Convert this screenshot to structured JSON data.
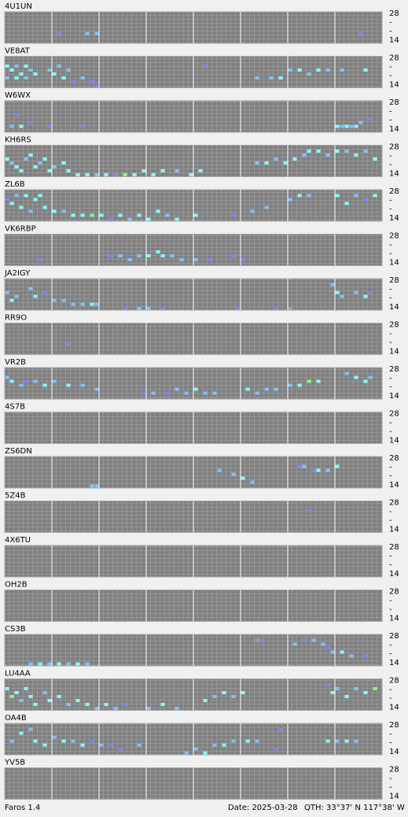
{
  "bands": [
    "28",
    "-",
    "-",
    "14"
  ],
  "palette": [
    "#8080ff",
    "#80c0ff",
    "#80ffff",
    "#80ff80",
    "#a0a0a0"
  ],
  "stations": [
    {
      "name": "4U1UN",
      "cells": [
        [
          11,
          5,
          0
        ],
        [
          17,
          5,
          1
        ],
        [
          19,
          5,
          1
        ],
        [
          75,
          5,
          0
        ]
      ]
    },
    {
      "name": "VE8AT",
      "cells": [
        [
          0,
          2,
          2
        ],
        [
          1,
          3,
          2
        ],
        [
          2,
          2,
          1
        ],
        [
          3,
          4,
          2
        ],
        [
          4,
          2,
          2
        ],
        [
          5,
          3,
          1
        ],
        [
          6,
          4,
          2
        ],
        [
          0,
          5,
          1
        ],
        [
          2,
          5,
          2
        ],
        [
          4,
          5,
          1
        ],
        [
          9,
          3,
          1
        ],
        [
          10,
          4,
          2
        ],
        [
          11,
          2,
          1
        ],
        [
          12,
          5,
          2
        ],
        [
          13,
          3,
          1
        ],
        [
          14,
          6,
          0
        ],
        [
          16,
          5,
          1
        ],
        [
          18,
          6,
          0
        ],
        [
          19,
          7,
          0
        ],
        [
          42,
          2,
          0
        ],
        [
          53,
          5,
          1
        ],
        [
          56,
          5,
          1
        ],
        [
          58,
          5,
          2
        ],
        [
          60,
          3,
          1
        ],
        [
          62,
          3,
          2
        ],
        [
          64,
          4,
          1
        ],
        [
          66,
          3,
          2
        ],
        [
          68,
          3,
          1
        ],
        [
          71,
          3,
          1
        ],
        [
          76,
          3,
          2
        ]
      ]
    },
    {
      "name": "W6WX",
      "cells": [
        [
          2,
          3,
          0
        ],
        [
          1,
          6,
          1
        ],
        [
          3,
          6,
          2
        ],
        [
          5,
          5,
          0
        ],
        [
          9,
          6,
          0
        ],
        [
          16,
          6,
          0
        ],
        [
          70,
          6,
          2
        ],
        [
          71,
          6,
          1
        ],
        [
          72,
          6,
          2
        ],
        [
          73,
          6,
          1
        ],
        [
          74,
          6,
          2
        ],
        [
          75,
          5,
          1
        ],
        [
          77,
          4,
          0
        ]
      ]
    },
    {
      "name": "KH6RS",
      "cells": [
        [
          0,
          3,
          2
        ],
        [
          1,
          4,
          1
        ],
        [
          2,
          5,
          2
        ],
        [
          3,
          6,
          2
        ],
        [
          4,
          3,
          1
        ],
        [
          5,
          2,
          2
        ],
        [
          6,
          5,
          2
        ],
        [
          7,
          4,
          1
        ],
        [
          8,
          3,
          2
        ],
        [
          9,
          6,
          2
        ],
        [
          10,
          5,
          1
        ],
        [
          12,
          4,
          2
        ],
        [
          13,
          6,
          2
        ],
        [
          15,
          7,
          2
        ],
        [
          17,
          7,
          2
        ],
        [
          19,
          7,
          1
        ],
        [
          21,
          7,
          2
        ],
        [
          23,
          7,
          0
        ],
        [
          25,
          7,
          3
        ],
        [
          27,
          7,
          2
        ],
        [
          29,
          6,
          2
        ],
        [
          31,
          7,
          2
        ],
        [
          33,
          6,
          2
        ],
        [
          36,
          6,
          1
        ],
        [
          39,
          7,
          2
        ],
        [
          41,
          6,
          2
        ],
        [
          53,
          4,
          1
        ],
        [
          55,
          4,
          2
        ],
        [
          57,
          3,
          1
        ],
        [
          59,
          4,
          2
        ],
        [
          61,
          3,
          2
        ],
        [
          63,
          2,
          1
        ],
        [
          64,
          1,
          2
        ],
        [
          66,
          1,
          2
        ],
        [
          68,
          2,
          1
        ],
        [
          70,
          1,
          2
        ],
        [
          72,
          1,
          1
        ],
        [
          74,
          2,
          2
        ],
        [
          76,
          1,
          1
        ],
        [
          78,
          3,
          2
        ]
      ]
    },
    {
      "name": "ZL6B",
      "cells": [
        [
          0,
          2,
          0
        ],
        [
          1,
          3,
          2
        ],
        [
          2,
          1,
          1
        ],
        [
          3,
          4,
          2
        ],
        [
          4,
          1,
          2
        ],
        [
          5,
          5,
          1
        ],
        [
          6,
          2,
          2
        ],
        [
          7,
          1,
          2
        ],
        [
          8,
          4,
          2
        ],
        [
          10,
          5,
          2
        ],
        [
          12,
          5,
          1
        ],
        [
          14,
          6,
          2
        ],
        [
          16,
          6,
          2
        ],
        [
          18,
          6,
          3
        ],
        [
          20,
          6,
          2
        ],
        [
          22,
          7,
          0
        ],
        [
          24,
          6,
          2
        ],
        [
          26,
          7,
          1
        ],
        [
          28,
          6,
          2
        ],
        [
          30,
          7,
          2
        ],
        [
          32,
          5,
          2
        ],
        [
          34,
          6,
          1
        ],
        [
          36,
          7,
          2
        ],
        [
          40,
          6,
          2
        ],
        [
          48,
          6,
          0
        ],
        [
          52,
          5,
          1
        ],
        [
          55,
          4,
          1
        ],
        [
          60,
          2,
          1
        ],
        [
          62,
          1,
          2
        ],
        [
          64,
          1,
          1
        ],
        [
          70,
          1,
          2
        ],
        [
          72,
          3,
          2
        ],
        [
          74,
          1,
          1
        ],
        [
          76,
          2,
          0
        ],
        [
          78,
          1,
          2
        ]
      ]
    },
    {
      "name": "VK6RBP",
      "cells": [
        [
          7,
          6,
          0
        ],
        [
          22,
          5,
          0
        ],
        [
          24,
          5,
          1
        ],
        [
          26,
          6,
          1
        ],
        [
          28,
          5,
          1
        ],
        [
          30,
          5,
          2
        ],
        [
          32,
          4,
          2
        ],
        [
          33,
          5,
          2
        ],
        [
          35,
          5,
          1
        ],
        [
          37,
          6,
          1
        ],
        [
          40,
          6,
          1
        ],
        [
          43,
          6,
          0
        ],
        [
          48,
          5,
          0
        ],
        [
          50,
          6,
          0
        ]
      ]
    },
    {
      "name": "JA2IGY",
      "cells": [
        [
          0,
          3,
          1
        ],
        [
          1,
          5,
          2
        ],
        [
          2,
          4,
          1
        ],
        [
          5,
          2,
          1
        ],
        [
          6,
          4,
          2
        ],
        [
          8,
          3,
          0
        ],
        [
          10,
          5,
          1
        ],
        [
          12,
          5,
          1
        ],
        [
          14,
          6,
          1
        ],
        [
          16,
          6,
          1
        ],
        [
          18,
          6,
          2
        ],
        [
          19,
          6,
          1
        ],
        [
          25,
          7,
          0
        ],
        [
          28,
          7,
          1
        ],
        [
          30,
          7,
          1
        ],
        [
          33,
          7,
          0
        ],
        [
          49,
          7,
          0
        ],
        [
          57,
          7,
          0
        ],
        [
          60,
          7,
          4
        ],
        [
          69,
          1,
          1
        ],
        [
          70,
          3,
          2
        ],
        [
          71,
          4,
          1
        ],
        [
          74,
          3,
          1
        ],
        [
          76,
          4,
          2
        ],
        [
          77,
          3,
          0
        ]
      ]
    },
    {
      "name": "RR9O",
      "cells": [
        [
          13,
          5,
          0
        ]
      ]
    },
    {
      "name": "VR2B",
      "cells": [
        [
          0,
          2,
          1
        ],
        [
          1,
          3,
          2
        ],
        [
          3,
          4,
          1
        ],
        [
          4,
          3,
          0
        ],
        [
          6,
          3,
          1
        ],
        [
          8,
          4,
          2
        ],
        [
          10,
          3,
          1
        ],
        [
          13,
          4,
          2
        ],
        [
          16,
          4,
          1
        ],
        [
          19,
          5,
          1
        ],
        [
          29,
          6,
          0
        ],
        [
          31,
          6,
          1
        ],
        [
          34,
          6,
          0
        ],
        [
          36,
          5,
          1
        ],
        [
          38,
          6,
          1
        ],
        [
          40,
          5,
          2
        ],
        [
          42,
          6,
          1
        ],
        [
          44,
          6,
          1
        ],
        [
          51,
          5,
          2
        ],
        [
          53,
          6,
          1
        ],
        [
          55,
          5,
          1
        ],
        [
          57,
          5,
          1
        ],
        [
          60,
          4,
          1
        ],
        [
          62,
          4,
          2
        ],
        [
          64,
          3,
          3
        ],
        [
          66,
          3,
          2
        ],
        [
          72,
          1,
          1
        ],
        [
          74,
          2,
          2
        ],
        [
          76,
          3,
          2
        ],
        [
          77,
          2,
          1
        ]
      ]
    },
    {
      "name": "4S7B",
      "cells": []
    },
    {
      "name": "ZS6DN",
      "cells": [
        [
          18,
          7,
          1
        ],
        [
          19,
          7,
          1
        ],
        [
          45,
          3,
          1
        ],
        [
          48,
          4,
          1
        ],
        [
          50,
          5,
          2
        ],
        [
          52,
          6,
          1
        ],
        [
          62,
          2,
          0
        ],
        [
          63,
          2,
          1
        ],
        [
          65,
          3,
          0
        ],
        [
          66,
          3,
          2
        ],
        [
          68,
          3,
          1
        ],
        [
          70,
          2,
          2
        ]
      ]
    },
    {
      "name": "5Z4B",
      "cells": [
        [
          64,
          2,
          0
        ]
      ]
    },
    {
      "name": "4X6TU",
      "cells": []
    },
    {
      "name": "OH2B",
      "cells": []
    },
    {
      "name": "CS3B",
      "cells": [
        [
          53,
          1,
          4
        ],
        [
          54,
          1,
          0
        ],
        [
          61,
          2,
          1
        ],
        [
          63,
          1,
          0
        ],
        [
          65,
          1,
          1
        ],
        [
          67,
          2,
          1
        ],
        [
          68,
          3,
          0
        ],
        [
          69,
          4,
          1
        ],
        [
          71,
          4,
          2
        ],
        [
          73,
          5,
          1
        ],
        [
          76,
          5,
          0
        ],
        [
          5,
          7,
          1
        ],
        [
          7,
          7,
          2
        ],
        [
          9,
          7,
          1
        ],
        [
          11,
          7,
          2
        ],
        [
          13,
          7,
          1
        ],
        [
          15,
          7,
          2
        ],
        [
          17,
          7,
          1
        ]
      ]
    },
    {
      "name": "LU4AA",
      "cells": [
        [
          0,
          2,
          2
        ],
        [
          1,
          4,
          3
        ],
        [
          2,
          3,
          2
        ],
        [
          3,
          5,
          1
        ],
        [
          4,
          2,
          2
        ],
        [
          5,
          4,
          2
        ],
        [
          6,
          6,
          2
        ],
        [
          8,
          3,
          1
        ],
        [
          9,
          5,
          2
        ],
        [
          11,
          4,
          2
        ],
        [
          13,
          6,
          1
        ],
        [
          15,
          5,
          2
        ],
        [
          17,
          6,
          2
        ],
        [
          19,
          7,
          1
        ],
        [
          21,
          6,
          2
        ],
        [
          23,
          7,
          1
        ],
        [
          25,
          6,
          0
        ],
        [
          30,
          7,
          1
        ],
        [
          33,
          6,
          2
        ],
        [
          36,
          7,
          1
        ],
        [
          42,
          5,
          2
        ],
        [
          44,
          4,
          1
        ],
        [
          46,
          3,
          2
        ],
        [
          48,
          4,
          1
        ],
        [
          50,
          3,
          2
        ],
        [
          68,
          1,
          0
        ],
        [
          69,
          3,
          2
        ],
        [
          70,
          2,
          1
        ],
        [
          72,
          4,
          2
        ],
        [
          74,
          2,
          1
        ],
        [
          76,
          3,
          2
        ],
        [
          78,
          2,
          3
        ]
      ]
    },
    {
      "name": "OA4B",
      "cells": [
        [
          1,
          4,
          1
        ],
        [
          3,
          2,
          2
        ],
        [
          5,
          1,
          1
        ],
        [
          6,
          4,
          2
        ],
        [
          8,
          5,
          2
        ],
        [
          10,
          3,
          1
        ],
        [
          12,
          4,
          2
        ],
        [
          14,
          4,
          1
        ],
        [
          16,
          5,
          2
        ],
        [
          18,
          4,
          0
        ],
        [
          20,
          5,
          1
        ],
        [
          22,
          5,
          0
        ],
        [
          24,
          6,
          0
        ],
        [
          28,
          5,
          1
        ],
        [
          38,
          7,
          1
        ],
        [
          40,
          6,
          1
        ],
        [
          42,
          7,
          2
        ],
        [
          44,
          5,
          1
        ],
        [
          46,
          5,
          2
        ],
        [
          48,
          4,
          1
        ],
        [
          51,
          4,
          2
        ],
        [
          53,
          4,
          1
        ],
        [
          57,
          6,
          0
        ],
        [
          58,
          1,
          0
        ],
        [
          68,
          4,
          2
        ],
        [
          70,
          4,
          1
        ],
        [
          72,
          4,
          2
        ],
        [
          74,
          4,
          1
        ]
      ]
    },
    {
      "name": "YV5B",
      "cells": []
    }
  ],
  "footer": {
    "app": "Faros 1.4",
    "date": "Date: 2025-03-28",
    "qth": "QTH: 33°37' N  117°38' W"
  }
}
